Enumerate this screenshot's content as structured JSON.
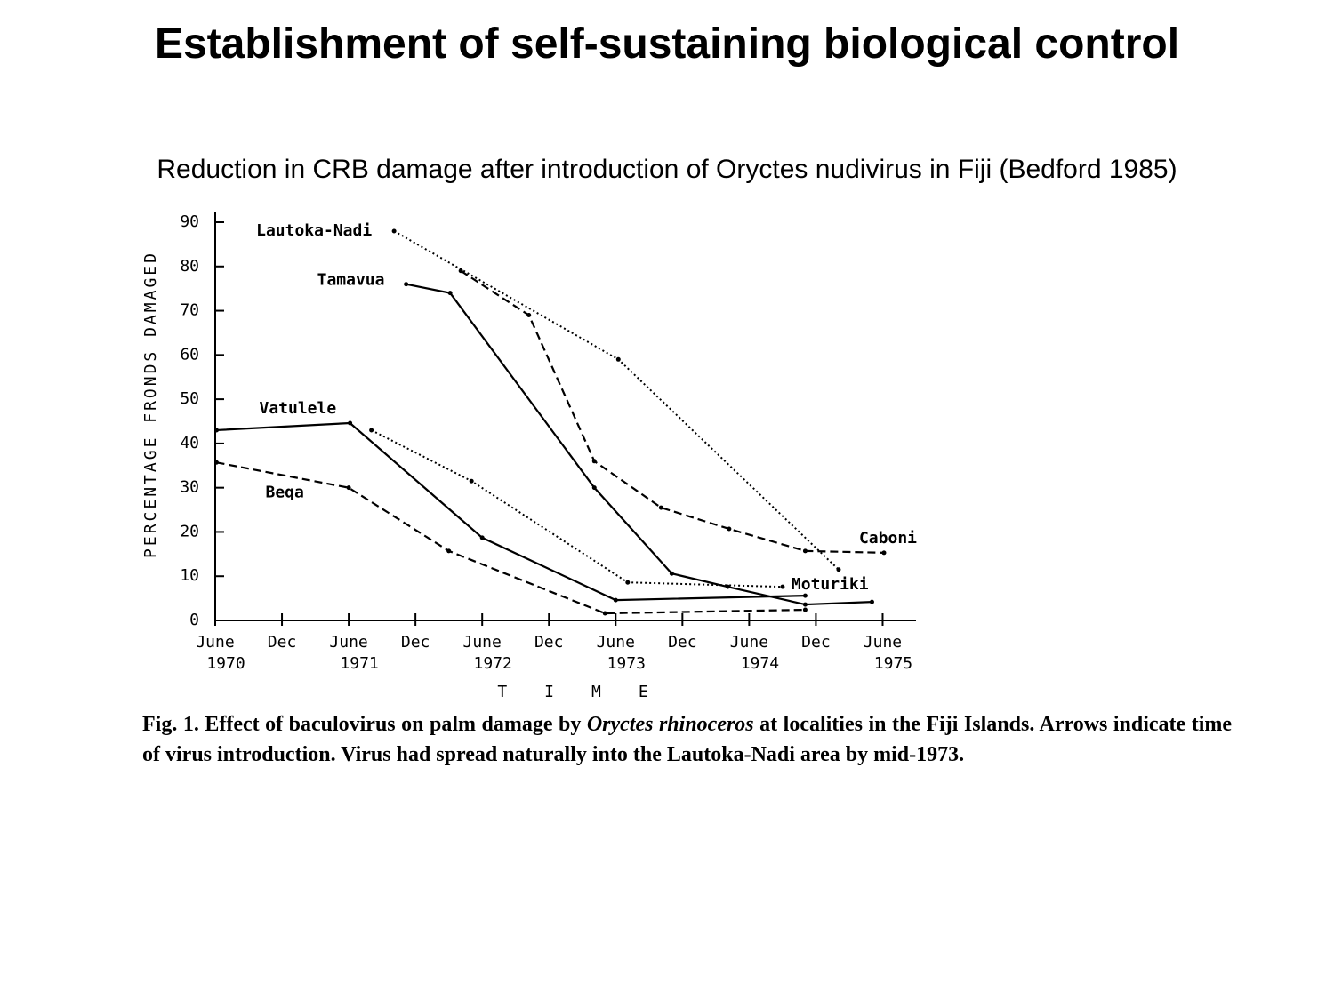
{
  "title": "Establishment of self-sustaining biological control",
  "subtitle": "Reduction in CRB damage after introduction of Oryctes nudivirus in Fiji (Bedford 1985)",
  "chart_data": {
    "type": "line",
    "ylabel": "PERCENTAGE FRONDS DAMAGED",
    "xlabel": "TIME",
    "xlim": [
      1970.46,
      1975.71
    ],
    "ylim": [
      0,
      90
    ],
    "yticks": [
      0,
      10,
      20,
      30,
      40,
      50,
      60,
      70,
      80,
      90
    ],
    "xticks": [
      {
        "value": 1970.46,
        "label": "June 1970"
      },
      {
        "value": 1970.96,
        "label": "Dec"
      },
      {
        "value": 1971.46,
        "label": "June 1971"
      },
      {
        "value": 1971.96,
        "label": "Dec"
      },
      {
        "value": 1972.46,
        "label": "June 1972"
      },
      {
        "value": 1972.96,
        "label": "Dec"
      },
      {
        "value": 1973.46,
        "label": "June 1973"
      },
      {
        "value": 1973.96,
        "label": "Dec"
      },
      {
        "value": 1974.46,
        "label": "June 1974"
      },
      {
        "value": 1974.96,
        "label": "Dec"
      },
      {
        "value": 1975.46,
        "label": "June 1975"
      }
    ],
    "series": [
      {
        "name": "Lautoka-Nadi",
        "color": "#000000",
        "dash": "dotted",
        "x": [
          1971.8,
          1973.48,
          1975.13
        ],
        "values": [
          88,
          59,
          11.5
        ]
      },
      {
        "name": "Tamavua",
        "color": "#000000",
        "dash": "solid",
        "x": [
          1971.89,
          1972.22,
          1973.3,
          1973.88,
          1974.3,
          1974.88,
          1975.38
        ],
        "values": [
          76,
          74,
          30,
          10.6,
          7.6,
          3.6,
          4.2
        ]
      },
      {
        "name": "Vatulele",
        "color": "#000000",
        "dash": "solid",
        "x": [
          1970.47,
          1971.47,
          1972.46,
          1973.46,
          1974.88
        ],
        "values": [
          43,
          44.6,
          18.7,
          4.6,
          5.6
        ]
      },
      {
        "name": "Beqa",
        "color": "#000000",
        "dash": "dashed",
        "x": [
          1970.47,
          1971.46,
          1972.21,
          1973.38,
          1974.88
        ],
        "values": [
          35.7,
          30,
          15.7,
          1.6,
          2.4
        ]
      },
      {
        "name": "Caboni",
        "color": "#000000",
        "dash": "dashed",
        "x": [
          1972.3,
          1972.81,
          1973.3,
          1973.8,
          1974.31,
          1974.88,
          1975.47
        ],
        "values": [
          79,
          69,
          36,
          25.5,
          20.7,
          15.7,
          15.3
        ]
      },
      {
        "name": "Moturiki",
        "color": "#000000",
        "dash": "dotted",
        "x": [
          1971.63,
          1972.38,
          1973.55,
          1974.71
        ],
        "values": [
          43,
          31.5,
          8.6,
          7.6
        ]
      }
    ]
  },
  "caption": [
    "Fig. 1. Effect of baculovirus on palm damage by ",
    "Oryctes rhinoceros",
    " at localities in the Fiji Islands. Arrows indicate time of virus introduction. Virus had spread naturally into the Lautoka-Nadi area by mid-1973."
  ]
}
